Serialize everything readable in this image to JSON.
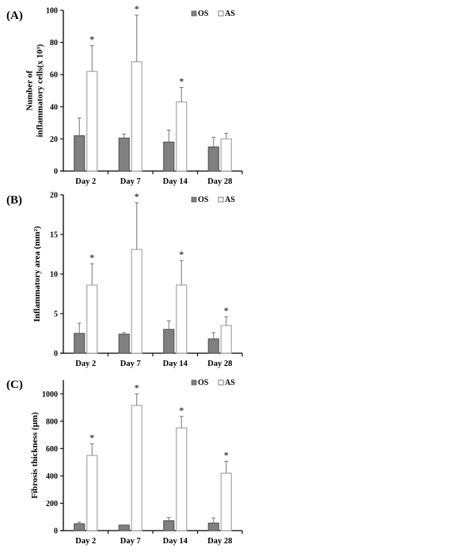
{
  "chart_data": [
    {
      "type": "bar",
      "panel": "(A)",
      "title": "",
      "xlabel": "",
      "ylabel_lines": [
        "Number of",
        "inflammatory cells(x 10³)"
      ],
      "ylabel": "Number of inflammatory cells(x 10³)",
      "ylim": [
        0,
        100
      ],
      "yticks": [
        0,
        20,
        40,
        60,
        80,
        100
      ],
      "ytick_labels": [
        "0",
        "20",
        "40",
        "60",
        "80",
        "100"
      ],
      "categories": [
        "Day 2",
        "Day 7",
        "Day 14",
        "Day 28"
      ],
      "legend": {
        "position": "top-right",
        "entries": [
          "OS",
          "AS"
        ]
      },
      "series": [
        {
          "name": "OS",
          "values": [
            22,
            20.5,
            18,
            15
          ],
          "error_upper": [
            33,
            23,
            25.5,
            21
          ],
          "significance": [
            "",
            "",
            "",
            ""
          ]
        },
        {
          "name": "AS",
          "values": [
            62,
            68,
            43,
            20
          ],
          "error_upper": [
            78,
            97,
            52,
            23.5
          ],
          "significance": [
            "*",
            "*",
            "*",
            ""
          ]
        }
      ]
    },
    {
      "type": "bar",
      "panel": "(B)",
      "title": "",
      "xlabel": "",
      "ylabel_lines": [
        "Inflammatory  area (mm²)"
      ],
      "ylabel": "Inflammatory  area (mm²)",
      "ylim": [
        0,
        20
      ],
      "yticks": [
        0,
        5,
        10,
        15,
        20
      ],
      "ytick_labels": [
        "0",
        "5",
        "10",
        "15",
        "20"
      ],
      "categories": [
        "Day 2",
        "Day 7",
        "Day 14",
        "Day 28"
      ],
      "legend": {
        "position": "top-right",
        "entries": [
          "OS",
          "AS"
        ]
      },
      "series": [
        {
          "name": "OS",
          "values": [
            2.5,
            2.4,
            3.0,
            1.8
          ],
          "error_upper": [
            3.8,
            2.6,
            4.1,
            2.6
          ],
          "significance": [
            "",
            "",
            "",
            ""
          ]
        },
        {
          "name": "AS",
          "values": [
            8.6,
            13.1,
            8.6,
            3.5
          ],
          "error_upper": [
            11.3,
            19.0,
            11.7,
            4.6
          ],
          "significance": [
            "*",
            "*",
            "*",
            "*"
          ]
        }
      ]
    },
    {
      "type": "bar",
      "panel": "(C)",
      "title": "",
      "xlabel": "",
      "ylabel_lines": [
        "Fibrosis thickness (μm)"
      ],
      "ylabel": "Fibrosis thickness (μm)",
      "ylim": [
        0,
        1100
      ],
      "yticks": [
        0,
        200,
        400,
        600,
        800,
        1000
      ],
      "ytick_labels": [
        "0",
        "200",
        "400",
        "600",
        "800",
        "1000"
      ],
      "categories": [
        "Day 2",
        "Day 7",
        "Day 14",
        "Day 28"
      ],
      "legend": {
        "position": "top-right",
        "entries": [
          "OS",
          "AS"
        ]
      },
      "series": [
        {
          "name": "OS",
          "values": [
            50,
            40,
            72,
            55
          ],
          "error_upper": [
            62,
            42,
            95,
            92
          ],
          "significance": [
            "",
            "",
            "",
            ""
          ]
        },
        {
          "name": "AS",
          "values": [
            550,
            915,
            750,
            420
          ],
          "error_upper": [
            635,
            1000,
            835,
            507
          ],
          "significance": [
            "*",
            "*",
            "*",
            "*"
          ]
        }
      ]
    }
  ],
  "colors": {
    "os_fill": "#808080",
    "os_stroke": "#595959",
    "as_fill": "#ffffff",
    "as_stroke": "#a6a6a6",
    "error_bar": "#808080",
    "axis": "#000000"
  }
}
